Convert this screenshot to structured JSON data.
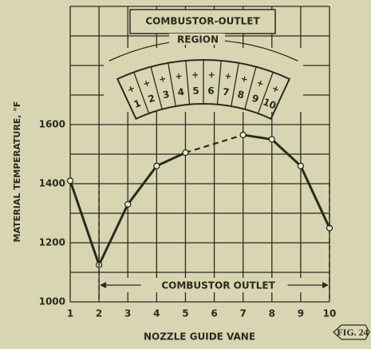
{
  "chart_data": {
    "type": "line",
    "x_label": "NOZZLE GUIDE VANE",
    "y_label": "MATERIAL TEMPERATURE, °F",
    "x": [
      1,
      2,
      3,
      4,
      5,
      6,
      7,
      8,
      9,
      10
    ],
    "series": [
      {
        "name": "Material temperature",
        "color": "#2b2a1f",
        "values": [
          1410,
          1125,
          1330,
          1460,
          1505,
          null,
          1565,
          1550,
          1460,
          1250
        ]
      }
    ],
    "xlim": [
      1,
      10
    ],
    "xticks": [
      1,
      2,
      3,
      4,
      5,
      6,
      7,
      8,
      9,
      10
    ],
    "ylim": [
      1000,
      2000
    ],
    "yticks": [
      1000,
      1200,
      1400,
      1600
    ],
    "ygrid": [
      1000,
      1100,
      1200,
      1300,
      1400,
      1500,
      1600,
      1700,
      1800,
      1900,
      2000
    ],
    "grid": true,
    "gap_style": "dashed",
    "annotations": {
      "inset_title": "COMBUSTOR-OUTLET",
      "inset_region": "REGION",
      "inset_vanes": [
        "1",
        "2",
        "3",
        "4",
        "5",
        "6",
        "7",
        "8",
        "9",
        "10"
      ],
      "span_label": "COMBUSTOR OUTLET",
      "figure": "FIG. 24"
    }
  }
}
